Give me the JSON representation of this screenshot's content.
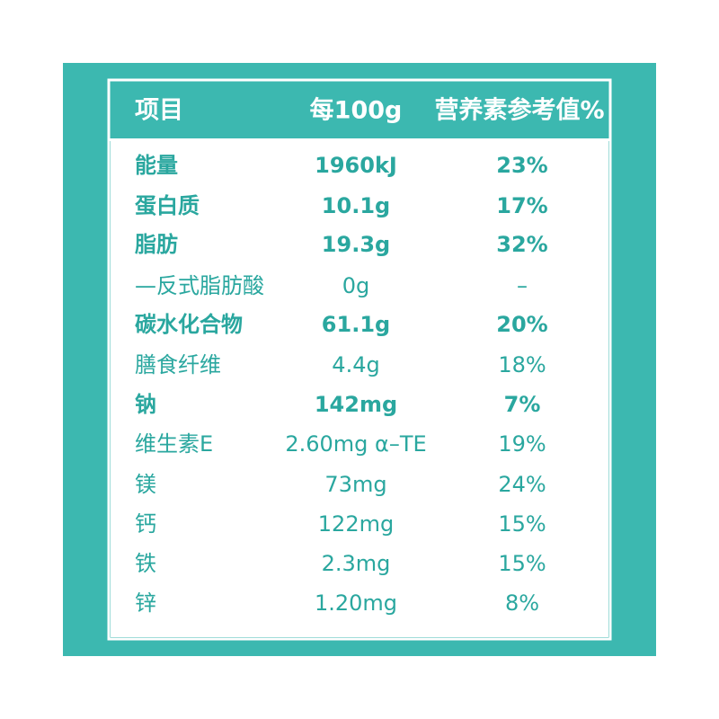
{
  "header": {
    "item": "项目",
    "per_100g": "每100g",
    "nrv": "营养素参考值%"
  },
  "table": {
    "rows": [
      [
        "能量",
        "1960kJ",
        "23%"
      ],
      [
        "蛋白质",
        "10.1g",
        "17%"
      ],
      [
        "脂肪",
        "19.3g",
        "32%"
      ],
      [
        "—反式脂肪酸",
        "0g",
        "–"
      ],
      [
        "碳水化合物",
        "61.1g",
        "20%"
      ],
      [
        "膳食纤维",
        "4.4g",
        "18%"
      ],
      [
        "钠",
        "142mg",
        "7%"
      ],
      [
        "维生素E",
        "2.60mg α–TE",
        "19%"
      ],
      [
        "镁",
        "73mg",
        "24%"
      ],
      [
        "钙",
        "122mg",
        "15%"
      ],
      [
        "铁",
        "2.3mg",
        "15%"
      ],
      [
        "锌",
        "1.20mg",
        "8%"
      ]
    ]
  }
}
